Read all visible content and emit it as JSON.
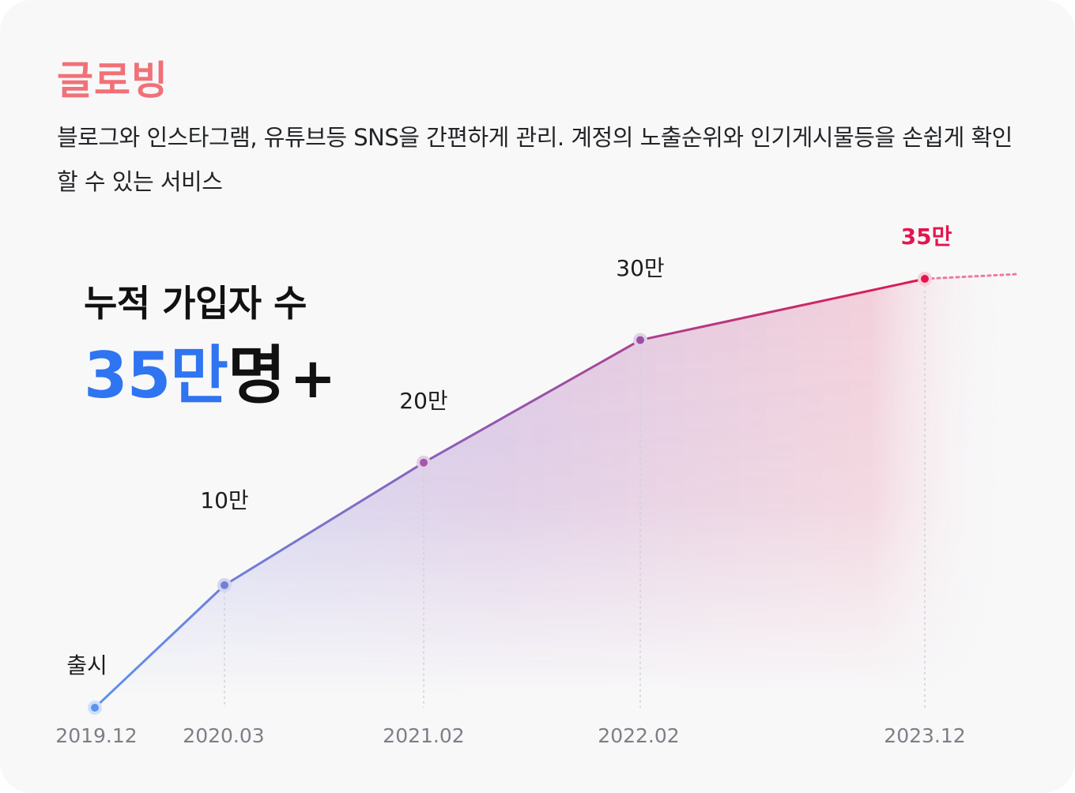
{
  "header": {
    "brand": "글로빙",
    "description": "블로그와 인스타그램, 유튜브등 SNS을 간편하게 관리. 계정의 노출순위와 인기게시물등을 손쉽게 확인 할 수 있는 서비스"
  },
  "kpi": {
    "label": "누적 가입자 수",
    "value_number": "35만",
    "value_suffix": "명",
    "value_plus": "+"
  },
  "colors": {
    "brand": "#f07178",
    "kpi_accent": "#2f74f0",
    "line_start": "#5b93ee",
    "line_mid": "#9b4fa5",
    "line_end": "#e0174f"
  },
  "chart_data": {
    "type": "line",
    "title": "",
    "xlabel": "",
    "ylabel": "",
    "categories": [
      "2019.12",
      "2020.03",
      "2021.02",
      "2022.02",
      "2023.12"
    ],
    "values": [
      0,
      10,
      20,
      30,
      35
    ],
    "unit": "만",
    "data_labels": [
      "출시",
      "10만",
      "20만",
      "30만",
      "35만"
    ],
    "ylim": [
      0,
      35
    ],
    "grid": false,
    "legend": "none"
  }
}
